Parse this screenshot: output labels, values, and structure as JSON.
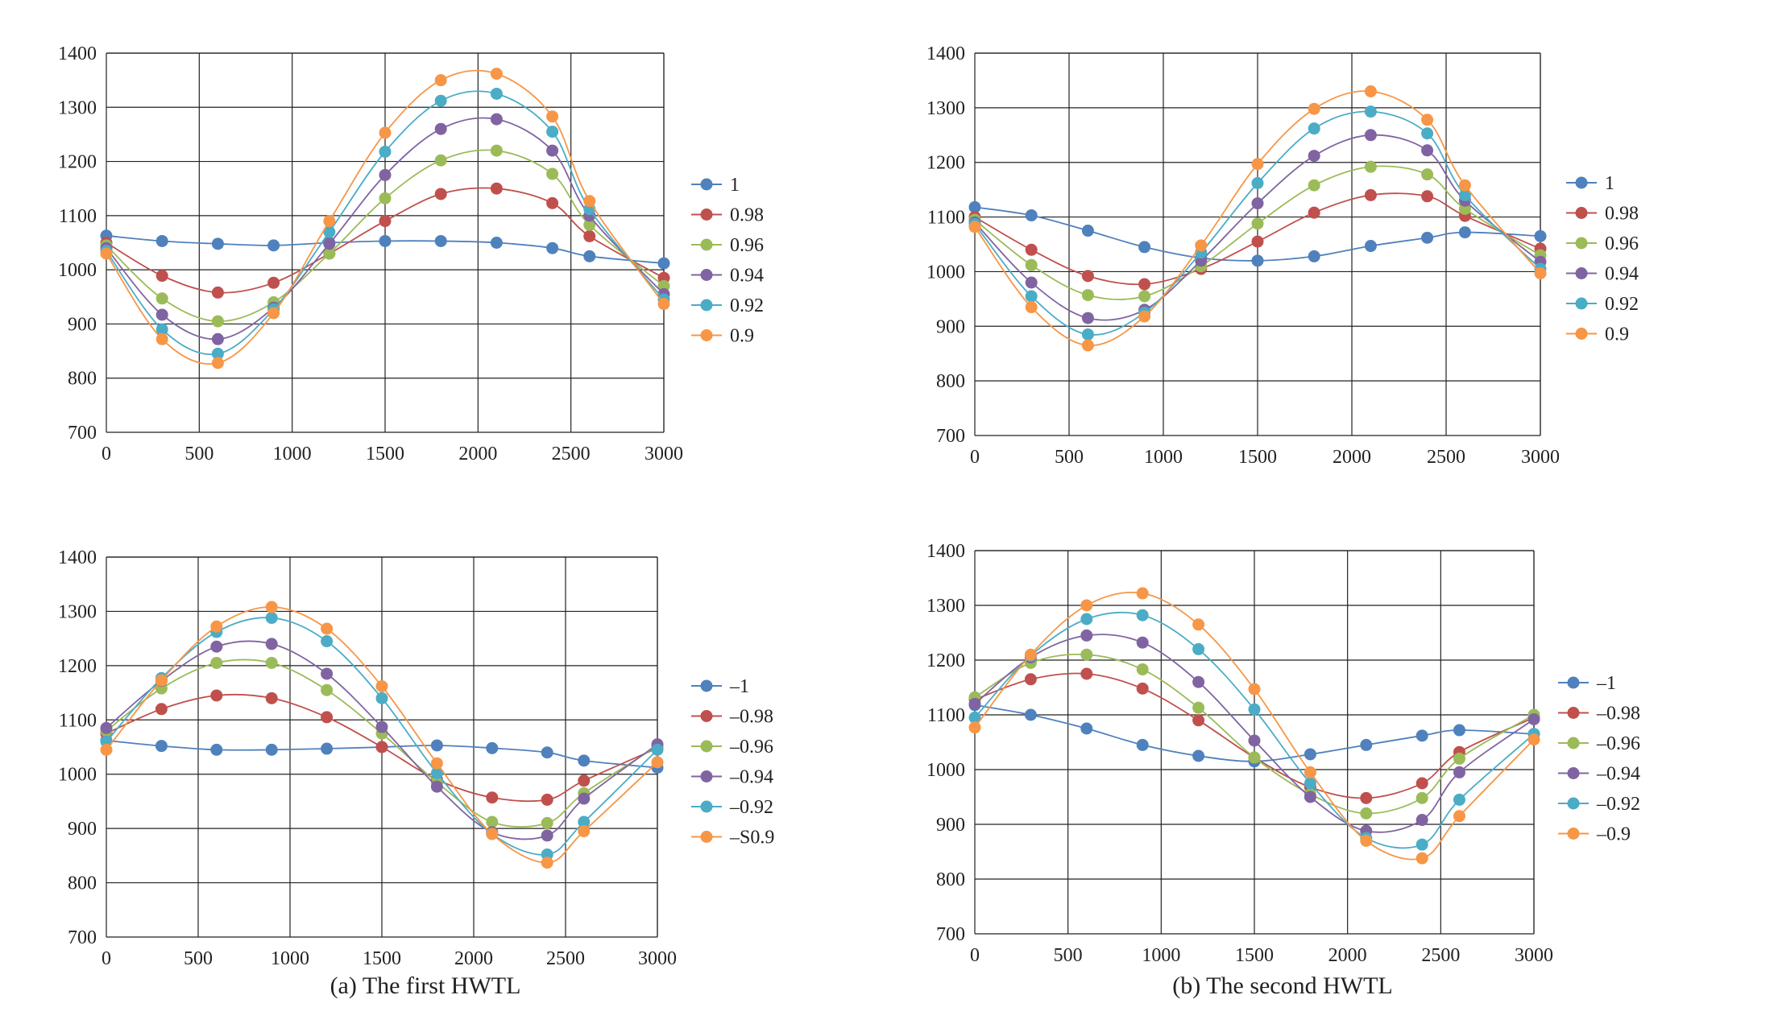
{
  "captions": {
    "a": "(a) The first HWTL",
    "b": "(b) The second HWTL"
  },
  "chart_data": [
    {
      "type": "line",
      "x": [
        0,
        300,
        600,
        900,
        1200,
        1500,
        1800,
        2100,
        2400,
        2600,
        3000
      ],
      "xlim": [
        0,
        3000
      ],
      "ylim": [
        700,
        1400
      ],
      "xticks": [
        0,
        500,
        1000,
        1500,
        2000,
        2500,
        3000
      ],
      "yticks": [
        700,
        800,
        900,
        1000,
        1100,
        1200,
        1300,
        1400
      ],
      "grid": true,
      "legend": "right",
      "marker": "circle",
      "smooth": true,
      "series": [
        {
          "name": "1",
          "color": "#4f81bd",
          "values": [
            1063,
            1053,
            1048,
            1045,
            1050,
            1053,
            1053,
            1050,
            1040,
            1025,
            1012
          ]
        },
        {
          "name": "0.98",
          "color": "#c0504d",
          "values": [
            1050,
            989,
            958,
            976,
            1030,
            1090,
            1140,
            1150,
            1123,
            1062,
            985
          ]
        },
        {
          "name": "0.96",
          "color": "#9bbb59",
          "values": [
            1045,
            947,
            905,
            940,
            1030,
            1132,
            1202,
            1220,
            1177,
            1083,
            970
          ]
        },
        {
          "name": "0.94",
          "color": "#8064a2",
          "values": [
            1040,
            917,
            872,
            930,
            1048,
            1175,
            1260,
            1278,
            1220,
            1100,
            955
          ]
        },
        {
          "name": "0.92",
          "color": "#4bacc6",
          "values": [
            1035,
            890,
            845,
            927,
            1070,
            1218,
            1312,
            1325,
            1255,
            1112,
            945
          ]
        },
        {
          "name": "0.9",
          "color": "#f79646",
          "values": [
            1030,
            872,
            828,
            920,
            1090,
            1253,
            1350,
            1362,
            1283,
            1127,
            937
          ]
        }
      ]
    },
    {
      "type": "line",
      "x": [
        0,
        300,
        600,
        900,
        1200,
        1500,
        1800,
        2100,
        2400,
        2600,
        3000
      ],
      "xlim": [
        0,
        3000
      ],
      "ylim": [
        700,
        1400
      ],
      "xticks": [
        0,
        500,
        1000,
        1500,
        2000,
        2500,
        3000
      ],
      "yticks": [
        700,
        800,
        900,
        1000,
        1100,
        1200,
        1300,
        1400
      ],
      "grid": true,
      "legend": "right",
      "marker": "circle",
      "smooth": true,
      "series": [
        {
          "name": "1",
          "color": "#4f81bd",
          "values": [
            1118,
            1103,
            1075,
            1045,
            1025,
            1020,
            1028,
            1047,
            1062,
            1072,
            1065
          ]
        },
        {
          "name": "0.98",
          "color": "#c0504d",
          "values": [
            1100,
            1040,
            992,
            977,
            1005,
            1055,
            1108,
            1140,
            1138,
            1102,
            1042
          ]
        },
        {
          "name": "0.96",
          "color": "#9bbb59",
          "values": [
            1095,
            1012,
            957,
            955,
            1010,
            1088,
            1158,
            1192,
            1178,
            1115,
            1030
          ]
        },
        {
          "name": "0.94",
          "color": "#8064a2",
          "values": [
            1090,
            980,
            915,
            930,
            1020,
            1125,
            1212,
            1250,
            1222,
            1130,
            1018
          ]
        },
        {
          "name": "0.92",
          "color": "#4bacc6",
          "values": [
            1087,
            955,
            885,
            925,
            1035,
            1162,
            1262,
            1293,
            1253,
            1140,
            1005
          ]
        },
        {
          "name": "0.9",
          "color": "#f79646",
          "values": [
            1082,
            935,
            865,
            918,
            1048,
            1197,
            1298,
            1330,
            1278,
            1158,
            997
          ]
        }
      ]
    },
    {
      "type": "line",
      "x": [
        0,
        300,
        600,
        900,
        1200,
        1500,
        1800,
        2100,
        2400,
        2600,
        3000
      ],
      "xlim": [
        0,
        3000
      ],
      "ylim": [
        700,
        1400
      ],
      "xticks": [
        0,
        500,
        1000,
        1500,
        2000,
        2500,
        3000
      ],
      "yticks": [
        700,
        800,
        900,
        1000,
        1100,
        1200,
        1300,
        1400
      ],
      "grid": true,
      "legend": "right",
      "marker": "circle",
      "smooth": true,
      "series": [
        {
          "name": "–1",
          "color": "#4f81bd",
          "values": [
            1062,
            1052,
            1045,
            1045,
            1047,
            1050,
            1053,
            1048,
            1040,
            1025,
            1012
          ]
        },
        {
          "name": "–0.98",
          "color": "#c0504d",
          "values": [
            1075,
            1120,
            1145,
            1140,
            1105,
            1050,
            990,
            957,
            953,
            988,
            1048
          ]
        },
        {
          "name": "–0.96",
          "color": "#9bbb59",
          "values": [
            1080,
            1158,
            1205,
            1205,
            1155,
            1075,
            985,
            912,
            910,
            965,
            1052
          ]
        },
        {
          "name": "–0.94",
          "color": "#8064a2",
          "values": [
            1085,
            1172,
            1235,
            1240,
            1185,
            1087,
            977,
            893,
            887,
            955,
            1055
          ]
        },
        {
          "name": "–0.92",
          "color": "#4bacc6",
          "values": [
            1060,
            1177,
            1262,
            1288,
            1245,
            1140,
            1002,
            890,
            852,
            912,
            1045
          ]
        },
        {
          "name": "–S0.9",
          "color": "#f79646",
          "values": [
            1045,
            1173,
            1272,
            1308,
            1268,
            1162,
            1020,
            890,
            837,
            895,
            1022
          ]
        }
      ]
    },
    {
      "type": "line",
      "x": [
        0,
        300,
        600,
        900,
        1200,
        1500,
        1800,
        2100,
        2400,
        2600,
        3000
      ],
      "xlim": [
        0,
        3000
      ],
      "ylim": [
        700,
        1400
      ],
      "xticks": [
        0,
        500,
        1000,
        1500,
        2000,
        2500,
        3000
      ],
      "yticks": [
        700,
        800,
        900,
        1000,
        1100,
        1200,
        1300,
        1400
      ],
      "grid": true,
      "legend": "right",
      "marker": "circle",
      "smooth": true,
      "series": [
        {
          "name": "–1",
          "color": "#4f81bd",
          "values": [
            1118,
            1100,
            1075,
            1045,
            1025,
            1015,
            1028,
            1045,
            1062,
            1072,
            1065
          ]
        },
        {
          "name": "–0.98",
          "color": "#c0504d",
          "values": [
            1128,
            1165,
            1175,
            1148,
            1090,
            1022,
            968,
            948,
            975,
            1032,
            1095
          ]
        },
        {
          "name": "–0.96",
          "color": "#9bbb59",
          "values": [
            1132,
            1195,
            1210,
            1183,
            1113,
            1022,
            955,
            920,
            948,
            1020,
            1100
          ]
        },
        {
          "name": "–0.94",
          "color": "#8064a2",
          "values": [
            1120,
            1205,
            1245,
            1232,
            1160,
            1053,
            950,
            888,
            908,
            995,
            1092
          ]
        },
        {
          "name": "–0.92",
          "color": "#4bacc6",
          "values": [
            1095,
            1208,
            1275,
            1282,
            1220,
            1110,
            975,
            875,
            863,
            945,
            1065
          ]
        },
        {
          "name": "–0.9",
          "color": "#f79646",
          "values": [
            1077,
            1210,
            1300,
            1322,
            1265,
            1147,
            995,
            870,
            838,
            915,
            1055
          ]
        }
      ]
    }
  ]
}
